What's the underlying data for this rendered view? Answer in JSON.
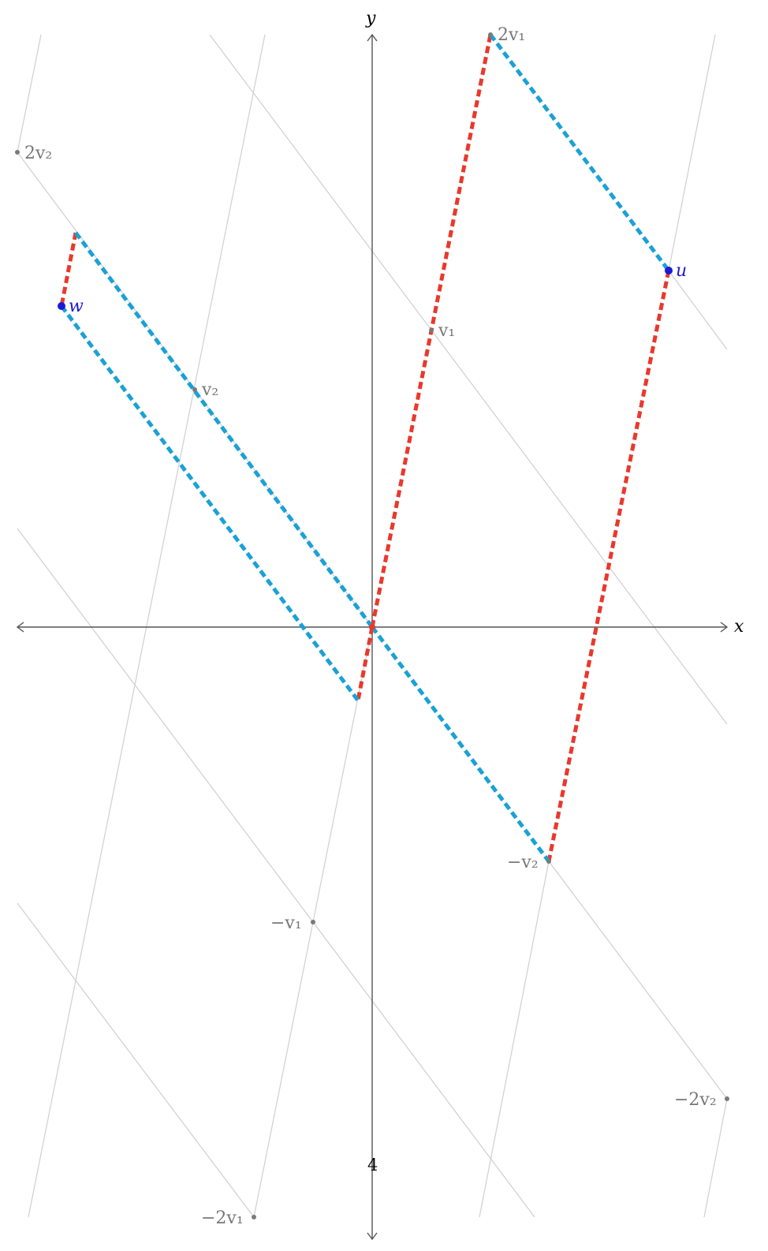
{
  "axes": {
    "x_label": "x",
    "y_label": "y",
    "tick_label": "4"
  },
  "lattice_labels": {
    "v1": "v₁",
    "two_v1": "2v₁",
    "neg_v1": "−v₁",
    "neg_two_v1": "−2v₁",
    "v2": "v₂",
    "two_v2": "2v₂",
    "neg_v2": "−v₂",
    "neg_two_v2": "−2v₂"
  },
  "vectors": {
    "u_label": "u",
    "w_label": "w"
  },
  "colors": {
    "red_path": "#e8392c",
    "blue_path": "#1aa1d6",
    "vector_point": "#1a1ad6",
    "lattice_gray": "#777777",
    "grid_gray": "#cfcfcf"
  }
}
